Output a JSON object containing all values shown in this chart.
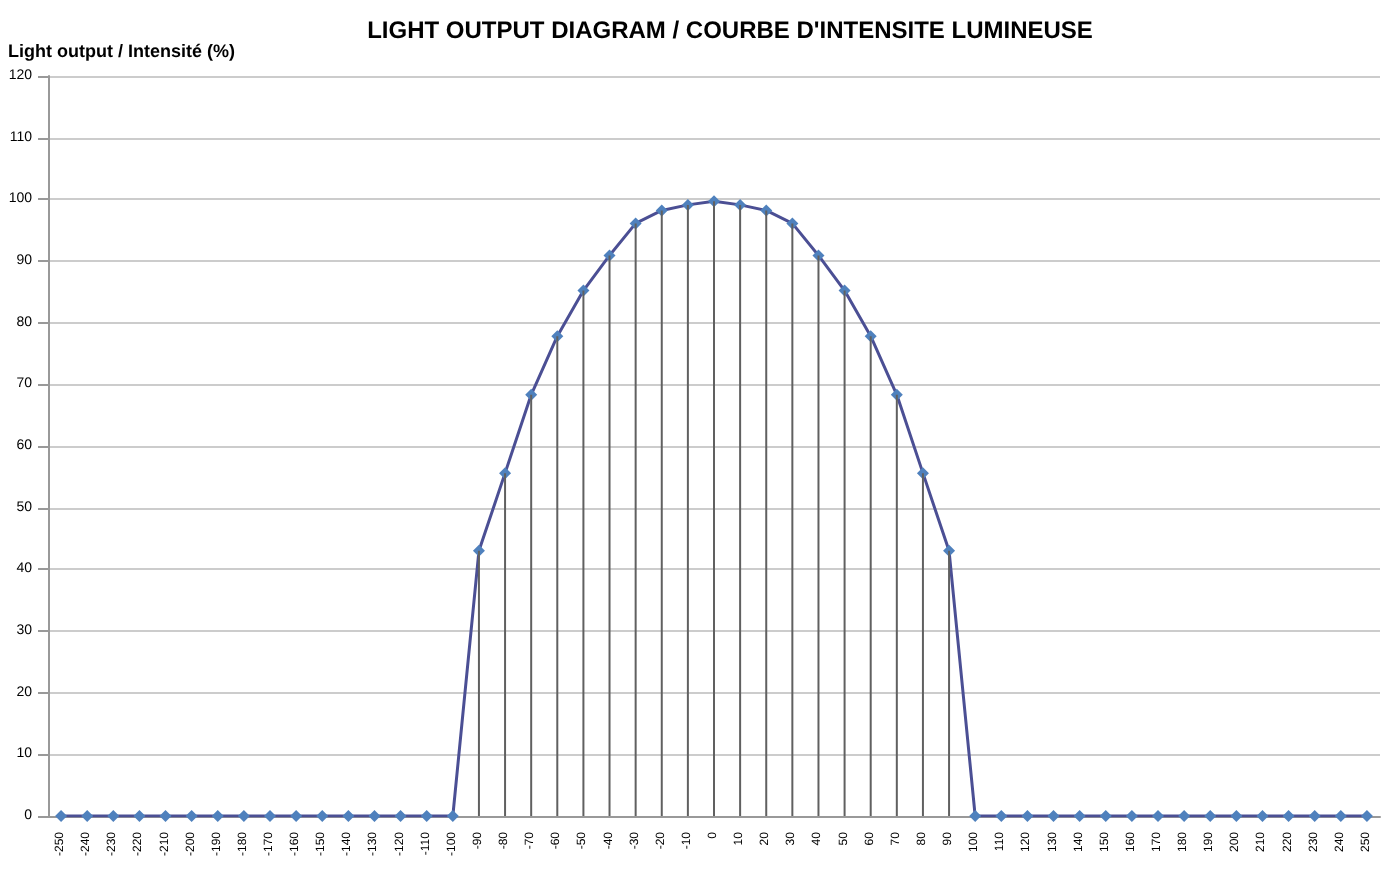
{
  "chart_data": {
    "type": "line",
    "title": "LIGHT OUTPUT DIAGRAM / COURBE D'INTENSITE LUMINEUSE",
    "ylabel": "Light output / Intensité (%)",
    "categories": [
      "-250",
      "-240",
      "-230",
      "-220",
      "-210",
      "-200",
      "-190",
      "-180",
      "-170",
      "-160",
      "-150",
      "-140",
      "-130",
      "-120",
      "-110",
      "-100",
      "-90",
      "-80",
      "-70",
      "-60",
      "-50",
      "-40",
      "-30",
      "-20",
      "-10",
      "0",
      "10",
      "20",
      "30",
      "40",
      "50",
      "60",
      "70",
      "80",
      "90",
      "100",
      "110",
      "120",
      "130",
      "140",
      "150",
      "160",
      "170",
      "180",
      "190",
      "200",
      "210",
      "220",
      "230",
      "240",
      "250"
    ],
    "series": [
      {
        "type": "bar",
        "color": "#606060",
        "values": [
          0,
          0,
          0,
          0,
          0,
          0,
          0,
          0,
          0,
          0,
          0,
          0,
          0,
          0,
          0,
          0,
          43,
          55.6,
          68.3,
          77.8,
          85.2,
          90.9,
          96.1,
          98.2,
          99.1,
          99.7,
          99.1,
          98.2,
          96.1,
          90.9,
          85.2,
          77.8,
          68.3,
          55.6,
          43,
          0,
          0,
          0,
          0,
          0,
          0,
          0,
          0,
          0,
          0,
          0,
          0,
          0,
          0,
          0,
          0
        ]
      },
      {
        "color": "#4b4f94",
        "values": [
          0,
          0,
          0,
          0,
          0,
          0,
          0,
          0,
          0,
          0,
          0,
          0,
          0,
          0,
          0,
          0,
          43,
          55.6,
          68.3,
          77.8,
          85.2,
          90.9,
          96.1,
          98.2,
          99.1,
          99.7,
          99.1,
          98.2,
          96.1,
          90.9,
          85.2,
          77.8,
          68.3,
          55.6,
          43,
          0,
          0,
          0,
          0,
          0,
          0,
          0,
          0,
          0,
          0,
          0,
          0,
          0,
          0,
          0,
          0
        ]
      }
    ],
    "ylim": [
      0,
      120
    ],
    "yticks": [
      0,
      10,
      20,
      30,
      40,
      50,
      60,
      70,
      80,
      90,
      100,
      110,
      120
    ],
    "grid": "y",
    "marker": "diamond",
    "line_style": "solid"
  }
}
